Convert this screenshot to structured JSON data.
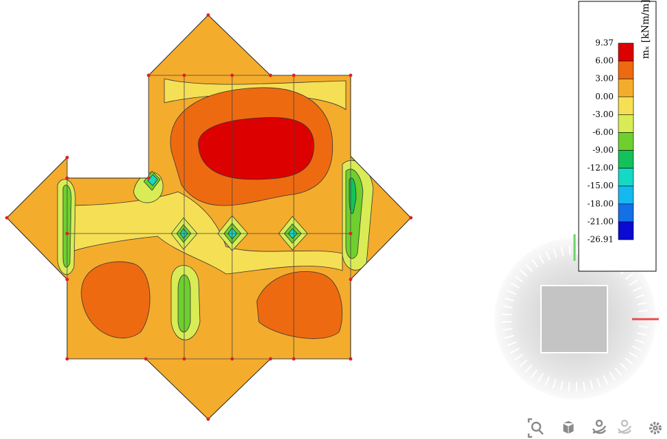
{
  "legend": {
    "title": "mₓ [kNm/m]",
    "labels": [
      "9.37",
      "6.00",
      "3.00",
      "0.00",
      "-3.00",
      "-6.00",
      "-9.00",
      "-12.00",
      "-15.00",
      "-18.00",
      "-21.00",
      "-26.91"
    ],
    "colors": [
      "#dc0000",
      "#ee6a10",
      "#f4ac2c",
      "#f5df55",
      "#d9ec55",
      "#6fcf2e",
      "#13c25a",
      "#14d9c4",
      "#16b8f0",
      "#1370e6",
      "#0a0ad2"
    ]
  }
}
